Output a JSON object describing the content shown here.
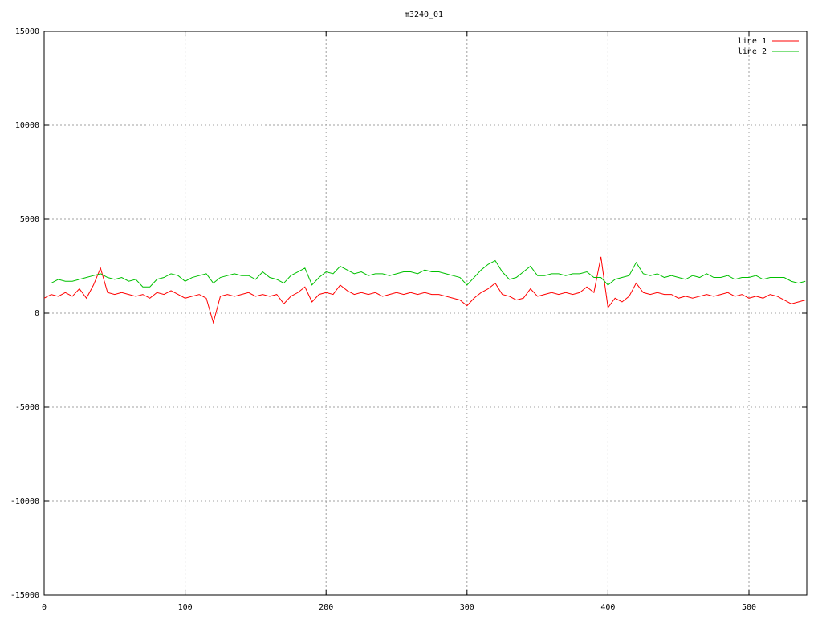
{
  "chart_data": {
    "type": "line",
    "title": "m3240_01",
    "x": [
      0,
      5,
      10,
      15,
      20,
      25,
      30,
      35,
      40,
      45,
      50,
      55,
      60,
      65,
      70,
      75,
      80,
      85,
      90,
      95,
      100,
      105,
      110,
      115,
      120,
      125,
      130,
      135,
      140,
      145,
      150,
      155,
      160,
      165,
      170,
      175,
      180,
      185,
      190,
      195,
      200,
      205,
      210,
      215,
      220,
      225,
      230,
      235,
      240,
      245,
      250,
      255,
      260,
      265,
      270,
      275,
      280,
      285,
      290,
      295,
      300,
      305,
      310,
      315,
      320,
      325,
      330,
      335,
      340,
      345,
      350,
      355,
      360,
      365,
      370,
      375,
      380,
      385,
      390,
      395,
      400,
      405,
      410,
      415,
      420,
      425,
      430,
      435,
      440,
      445,
      450,
      455,
      460,
      465,
      470,
      475,
      480,
      485,
      490,
      495,
      500,
      505,
      510,
      515,
      520,
      525,
      530,
      535,
      540
    ],
    "series": [
      {
        "name": "line 1",
        "color": "#ff0000",
        "values": [
          800,
          1000,
          900,
          1100,
          900,
          1300,
          800,
          1500,
          2400,
          1100,
          1000,
          1100,
          1000,
          900,
          1000,
          800,
          1100,
          1000,
          1200,
          1000,
          800,
          900,
          1000,
          800,
          -500,
          900,
          1000,
          900,
          1000,
          1100,
          900,
          1000,
          900,
          1000,
          500,
          900,
          1100,
          1400,
          600,
          1000,
          1100,
          1000,
          1500,
          1200,
          1000,
          1100,
          1000,
          1100,
          900,
          1000,
          1100,
          1000,
          1100,
          1000,
          1100,
          1000,
          1000,
          900,
          800,
          700,
          400,
          800,
          1100,
          1300,
          1600,
          1000,
          900,
          700,
          800,
          1300,
          900,
          1000,
          1100,
          1000,
          1100,
          1000,
          1100,
          1400,
          1100,
          3000,
          300,
          800,
          600,
          900,
          1600,
          1100,
          1000,
          1100,
          1000,
          1000,
          800,
          900,
          800,
          900,
          1000,
          900,
          1000,
          1100,
          900,
          1000,
          800,
          900,
          800,
          1000,
          900,
          700,
          500,
          600,
          700
        ]
      },
      {
        "name": "line 2",
        "color": "#00c000",
        "values": [
          1600,
          1600,
          1800,
          1700,
          1700,
          1800,
          1900,
          2000,
          2100,
          1900,
          1800,
          1900,
          1700,
          1800,
          1400,
          1400,
          1800,
          1900,
          2100,
          2000,
          1700,
          1900,
          2000,
          2100,
          1600,
          1900,
          2000,
          2100,
          2000,
          2000,
          1800,
          2200,
          1900,
          1800,
          1600,
          2000,
          2200,
          2400,
          1500,
          1900,
          2200,
          2100,
          2500,
          2300,
          2100,
          2200,
          2000,
          2100,
          2100,
          2000,
          2100,
          2200,
          2200,
          2100,
          2300,
          2200,
          2200,
          2100,
          2000,
          1900,
          1500,
          1900,
          2300,
          2600,
          2800,
          2200,
          1800,
          1900,
          2200,
          2500,
          2000,
          2000,
          2100,
          2100,
          2000,
          2100,
          2100,
          2200,
          1900,
          1900,
          1500,
          1800,
          1900,
          2000,
          2700,
          2100,
          2000,
          2100,
          1900,
          2000,
          1900,
          1800,
          2000,
          1900,
          2100,
          1900,
          1900,
          2000,
          1800,
          1900,
          1900,
          2000,
          1800,
          1900,
          1900,
          1900,
          1700,
          1600,
          1700
        ]
      }
    ],
    "xlim": [
      0,
      541
    ],
    "ylim": [
      -15000,
      15000
    ],
    "xticks": [
      0,
      100,
      200,
      300,
      400,
      500
    ],
    "yticks": [
      -15000,
      -10000,
      -5000,
      0,
      5000,
      10000,
      15000
    ],
    "grid": true,
    "legend": "top-right"
  }
}
